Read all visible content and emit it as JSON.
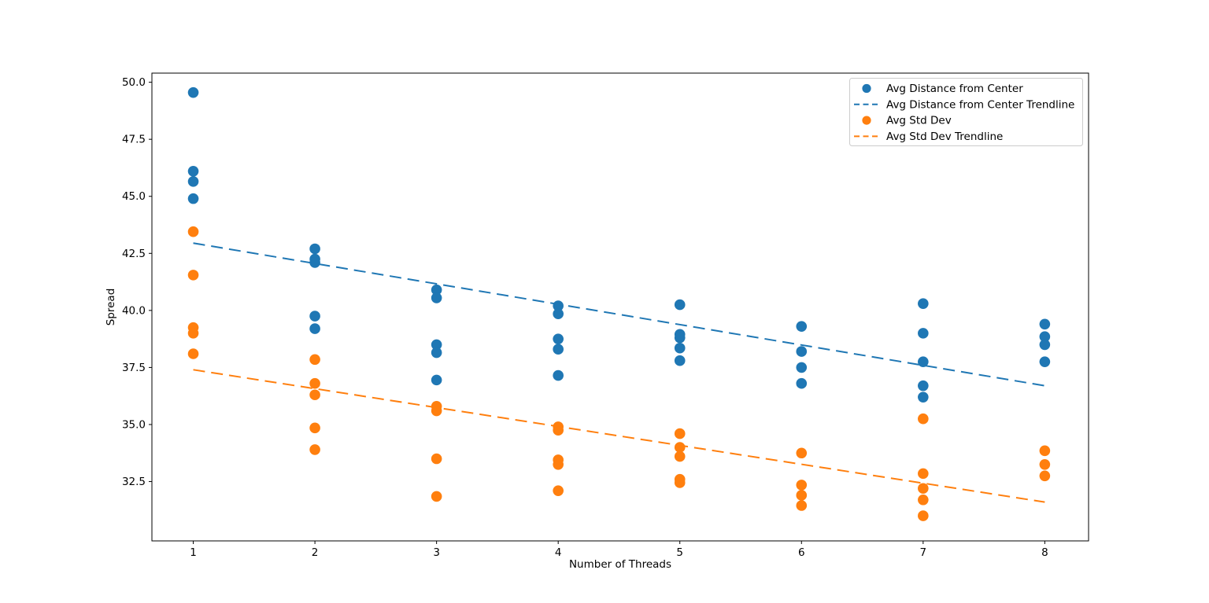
{
  "figure": {
    "background": "#ffffff"
  },
  "chart_data": {
    "type": "scatter",
    "title": "",
    "xlabel": "Number of Threads",
    "ylabel": "Spread",
    "xlim": [
      0.66,
      8.36
    ],
    "ylim": [
      29.9,
      50.4
    ],
    "xticks": [
      1,
      2,
      3,
      4,
      5,
      6,
      7,
      8
    ],
    "xticklabels": [
      "1",
      "2",
      "3",
      "4",
      "5",
      "6",
      "7",
      "8"
    ],
    "yticks": [
      32.5,
      35.0,
      37.5,
      40.0,
      42.5,
      45.0,
      47.5,
      50.0
    ],
    "yticklabels": [
      "32.5",
      "35.0",
      "37.5",
      "40.0",
      "42.5",
      "45.0",
      "47.5",
      "50.0"
    ],
    "grid": false,
    "legend": {
      "position": "upper right",
      "border_color": "#cccccc",
      "background": "#ffffff"
    },
    "series": [
      {
        "name": "Avg Distance from Center",
        "kind": "scatter",
        "color": "#1f77b4",
        "points": [
          [
            1,
            49.55
          ],
          [
            1,
            46.1
          ],
          [
            1,
            45.65
          ],
          [
            1,
            44.9
          ],
          [
            2,
            42.7
          ],
          [
            2,
            42.25
          ],
          [
            2,
            42.1
          ],
          [
            2,
            39.75
          ],
          [
            2,
            39.2
          ],
          [
            3,
            40.9
          ],
          [
            3,
            40.55
          ],
          [
            3,
            38.5
          ],
          [
            3,
            38.15
          ],
          [
            3,
            36.95
          ],
          [
            4,
            40.2
          ],
          [
            4,
            39.85
          ],
          [
            4,
            38.75
          ],
          [
            4,
            38.3
          ],
          [
            4,
            37.15
          ],
          [
            5,
            40.25
          ],
          [
            5,
            38.95
          ],
          [
            5,
            38.8
          ],
          [
            5,
            38.35
          ],
          [
            5,
            37.8
          ],
          [
            6,
            39.3
          ],
          [
            6,
            38.2
          ],
          [
            6,
            37.5
          ],
          [
            6,
            36.8
          ],
          [
            7,
            40.3
          ],
          [
            7,
            39.0
          ],
          [
            7,
            37.75
          ],
          [
            7,
            36.7
          ],
          [
            7,
            36.2
          ],
          [
            8,
            39.4
          ],
          [
            8,
            38.85
          ],
          [
            8,
            38.5
          ],
          [
            8,
            37.75
          ]
        ]
      },
      {
        "name": "Avg Distance from Center Trendline",
        "kind": "trendline",
        "color": "#1f77b4",
        "points": [
          [
            1,
            42.95
          ],
          [
            8,
            36.7
          ]
        ]
      },
      {
        "name": "Avg Std Dev",
        "kind": "scatter",
        "color": "#ff7f0e",
        "points": [
          [
            1,
            43.45
          ],
          [
            1,
            41.55
          ],
          [
            1,
            39.25
          ],
          [
            1,
            39.0
          ],
          [
            1,
            38.1
          ],
          [
            2,
            37.85
          ],
          [
            2,
            36.8
          ],
          [
            2,
            36.3
          ],
          [
            2,
            34.85
          ],
          [
            2,
            33.9
          ],
          [
            3,
            35.8
          ],
          [
            3,
            35.6
          ],
          [
            3,
            33.5
          ],
          [
            3,
            31.85
          ],
          [
            4,
            34.9
          ],
          [
            4,
            34.75
          ],
          [
            4,
            33.45
          ],
          [
            4,
            33.25
          ],
          [
            4,
            32.1
          ],
          [
            5,
            34.6
          ],
          [
            5,
            34.0
          ],
          [
            5,
            33.6
          ],
          [
            5,
            32.6
          ],
          [
            5,
            32.45
          ],
          [
            6,
            33.75
          ],
          [
            6,
            32.35
          ],
          [
            6,
            31.9
          ],
          [
            6,
            31.45
          ],
          [
            7,
            35.25
          ],
          [
            7,
            32.85
          ],
          [
            7,
            32.2
          ],
          [
            7,
            31.7
          ],
          [
            7,
            31.0
          ],
          [
            8,
            33.85
          ],
          [
            8,
            33.25
          ],
          [
            8,
            32.75
          ]
        ]
      },
      {
        "name": "Avg Std Dev Trendline",
        "kind": "trendline",
        "color": "#ff7f0e",
        "points": [
          [
            1,
            37.4
          ],
          [
            8,
            31.6
          ]
        ]
      }
    ]
  }
}
